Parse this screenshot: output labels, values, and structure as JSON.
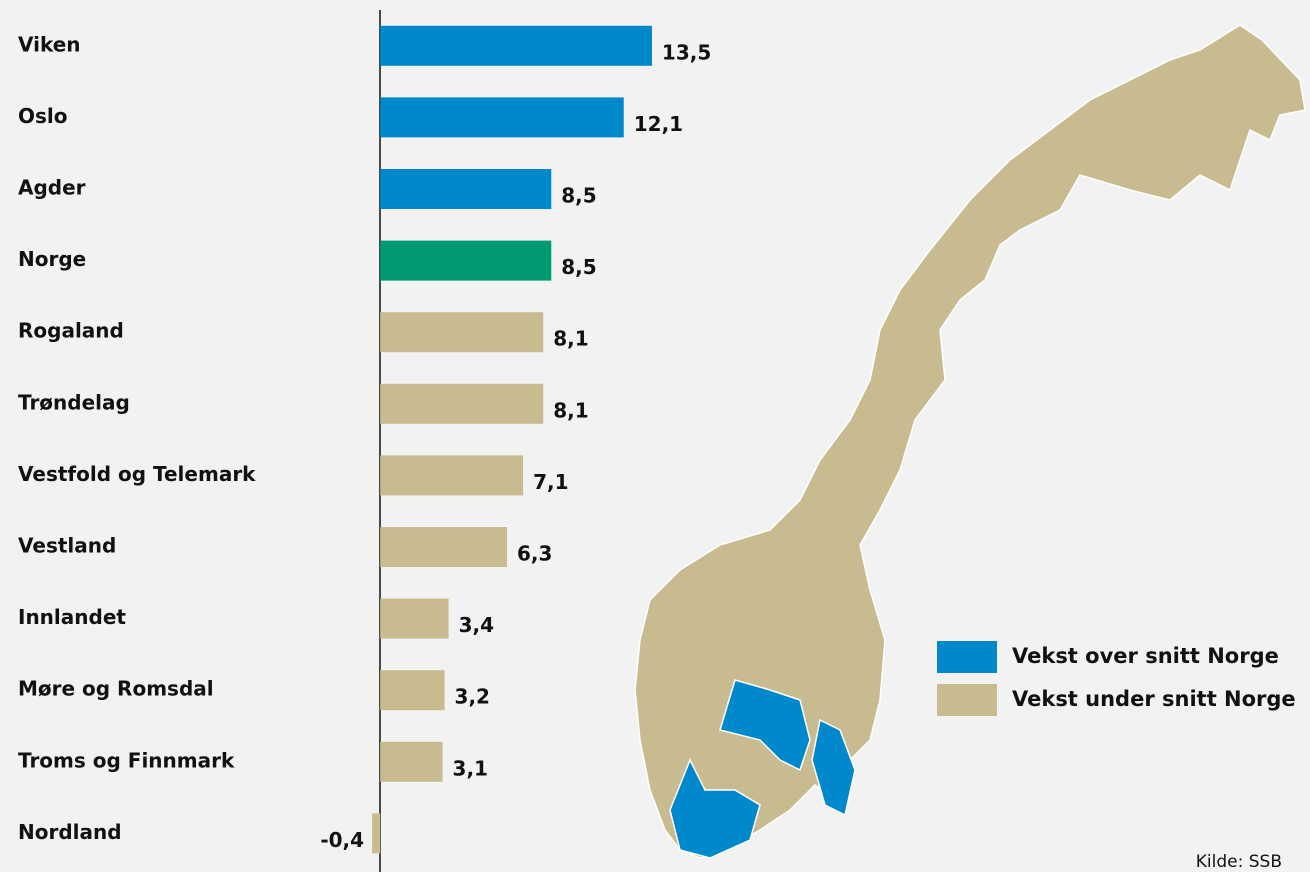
{
  "chart_data": {
    "type": "bar",
    "orientation": "horizontal",
    "categories": [
      "Viken",
      "Oslo",
      "Agder",
      "Norge",
      "Rogaland",
      "Trøndelag",
      "Vestfold og Telemark",
      "Vestland",
      "Innlandet",
      "Møre og Romsdal",
      "Troms og Finnmark",
      "Nordland"
    ],
    "values": [
      13.5,
      12.1,
      8.5,
      8.5,
      8.1,
      8.1,
      7.1,
      6.3,
      3.4,
      3.2,
      3.1,
      -0.4
    ],
    "value_labels": [
      "13,5",
      "12,1",
      "8,5",
      "8,5",
      "8,1",
      "8,1",
      "7,1",
      "6,3",
      "3,4",
      "3,2",
      "3,1",
      "-0,4"
    ],
    "colors": [
      "#0088cc",
      "#0088cc",
      "#0088cc",
      "#009a72",
      "#c8bb8f",
      "#c8bb8f",
      "#c8bb8f",
      "#c8bb8f",
      "#c8bb8f",
      "#c8bb8f",
      "#c8bb8f",
      "#c8bb8f"
    ],
    "xlim": [
      -1,
      14
    ],
    "legend": [
      {
        "name": "Vekst over snitt Norge",
        "color": "#0088cc"
      },
      {
        "name": "Vekst under snitt Norge",
        "color": "#c8bb8f"
      }
    ],
    "source": "Kilde: SSB"
  }
}
